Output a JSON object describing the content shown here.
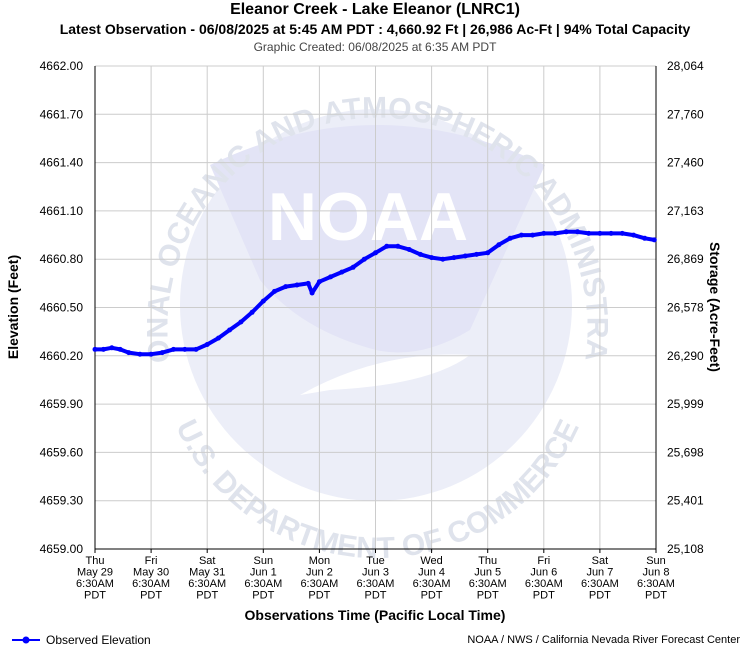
{
  "header": {
    "title": "Eleanor Creek - Lake Eleanor (LNRC1)",
    "subtitle": "Latest Observation - 06/08/2025 at 5:45 AM PDT : 4,660.92 Ft | 26,986 Ac-Ft | 94% Total Capacity",
    "created": "Graphic Created: 06/08/2025 at 6:35 AM PDT"
  },
  "watermark": {
    "logo_text": "NOAA",
    "ring_top": "NATIONAL OCEANIC AND ATMOSPHERIC ADMINISTRATION",
    "ring_bottom": "U.S. DEPARTMENT OF COMMERCE"
  },
  "legend": {
    "label": "Observed Elevation"
  },
  "credit": "NOAA / NWS / California Nevada River Forecast Center",
  "colors": {
    "series": "#0000ff",
    "grid": "#cccccc",
    "watermark": "#e8eaf6"
  },
  "chart_data": {
    "type": "line",
    "xlabel": "Observations Time (Pacific Local Time)",
    "ylabel": "Elevation (Feet)",
    "y2label": "Storage (Acre-Feet)",
    "ylim": [
      4659.0,
      4662.0
    ],
    "grid": true,
    "legend_position": "bottom-left",
    "yticks": [
      "4662.00",
      "4661.70",
      "4661.40",
      "4661.10",
      "4660.80",
      "4660.50",
      "4660.20",
      "4659.90",
      "4659.60",
      "4659.30",
      "4659.00"
    ],
    "y2ticks": [
      "28,064",
      "27,760",
      "27,460",
      "27,163",
      "26,869",
      "26,578",
      "26,290",
      "25,999",
      "25,698",
      "25,401",
      "25,108"
    ],
    "xticks": [
      [
        "Thu",
        "May 29",
        "6:30AM",
        "PDT"
      ],
      [
        "Fri",
        "May 30",
        "6:30AM",
        "PDT"
      ],
      [
        "Sat",
        "May 31",
        "6:30AM",
        "PDT"
      ],
      [
        "Sun",
        "Jun 1",
        "6:30AM",
        "PDT"
      ],
      [
        "Mon",
        "Jun 2",
        "6:30AM",
        "PDT"
      ],
      [
        "Tue",
        "Jun 3",
        "6:30AM",
        "PDT"
      ],
      [
        "Wed",
        "Jun 4",
        "6:30AM",
        "PDT"
      ],
      [
        "Thu",
        "Jun 5",
        "6:30AM",
        "PDT"
      ],
      [
        "Fri",
        "Jun 6",
        "6:30AM",
        "PDT"
      ],
      [
        "Sat",
        "Jun 7",
        "6:30AM",
        "PDT"
      ],
      [
        "Sun",
        "Jun 8",
        "6:30AM",
        "PDT"
      ]
    ],
    "series": [
      {
        "name": "Observed Elevation",
        "x": [
          0.0,
          0.15,
          0.3,
          0.45,
          0.6,
          0.8,
          1.0,
          1.2,
          1.4,
          1.6,
          1.8,
          2.0,
          2.2,
          2.4,
          2.6,
          2.8,
          3.0,
          3.2,
          3.4,
          3.6,
          3.8,
          3.87,
          4.0,
          4.2,
          4.4,
          4.6,
          4.8,
          5.0,
          5.2,
          5.4,
          5.6,
          5.8,
          6.0,
          6.2,
          6.4,
          6.6,
          6.8,
          7.0,
          7.2,
          7.4,
          7.6,
          7.8,
          8.0,
          8.2,
          8.4,
          8.6,
          8.8,
          9.0,
          9.2,
          9.4,
          9.6,
          9.8,
          9.97
        ],
        "y": [
          4660.24,
          4660.24,
          4660.25,
          4660.24,
          4660.22,
          4660.21,
          4660.21,
          4660.22,
          4660.24,
          4660.24,
          4660.24,
          4660.27,
          4660.31,
          4660.36,
          4660.41,
          4660.47,
          4660.54,
          4660.6,
          4660.63,
          4660.64,
          4660.65,
          4660.59,
          4660.66,
          4660.69,
          4660.72,
          4660.75,
          4660.8,
          4660.84,
          4660.88,
          4660.88,
          4660.86,
          4660.83,
          4660.81,
          4660.8,
          4660.81,
          4660.82,
          4660.83,
          4660.84,
          4660.89,
          4660.93,
          4660.95,
          4660.95,
          4660.96,
          4660.96,
          4660.97,
          4660.97,
          4660.96,
          4660.96,
          4660.96,
          4660.96,
          4660.95,
          4660.93,
          4660.92
        ]
      }
    ]
  }
}
